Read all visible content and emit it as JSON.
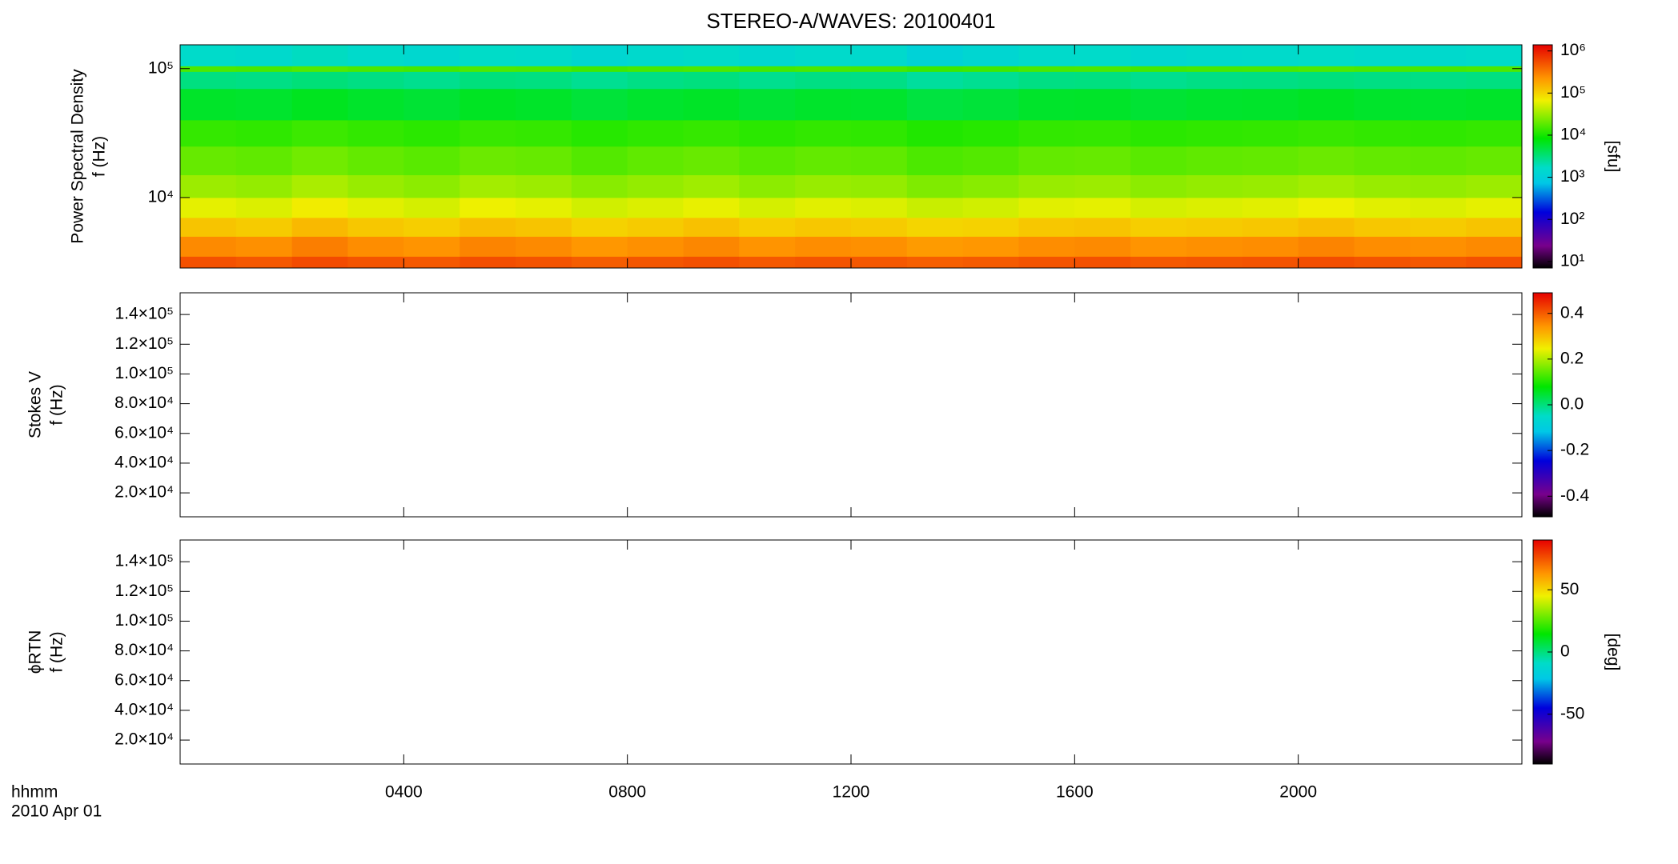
{
  "chart_data": [
    {
      "type": "heatmap",
      "title": "STEREO-A/WAVES: 20100401",
      "ylabel": [
        "Power Spectral Density",
        "f (Hz)"
      ],
      "ylog": true,
      "ylim": [
        2840,
        153000
      ],
      "yticks": [
        {
          "value": 10000,
          "label": "10⁴"
        },
        {
          "value": 100000,
          "label": "10⁵"
        }
      ],
      "xlim": [
        0,
        24
      ],
      "x_edges": [
        0,
        1,
        2,
        3,
        4,
        5,
        6,
        7,
        8,
        9,
        10,
        11,
        12,
        13,
        14,
        15,
        16,
        17,
        18,
        19,
        20,
        21,
        22,
        23,
        24
      ],
      "y_edges": [
        2840,
        3500,
        5000,
        7000,
        10000,
        15000,
        25000,
        40000,
        70000,
        95000,
        105000,
        153000
      ],
      "z": [
        [
          520000,
          480000,
          560000,
          500000,
          470000,
          540000,
          510000,
          450000,
          490000,
          530000,
          470000,
          500000,
          480000,
          440000,
          460000,
          500000,
          520000,
          470000,
          490000,
          510000,
          540000,
          500000,
          480000,
          520000
        ],
        [
          260000,
          240000,
          300000,
          250000,
          230000,
          280000,
          260000,
          220000,
          240000,
          270000,
          230000,
          250000,
          240000,
          210000,
          220000,
          250000,
          260000,
          230000,
          240000,
          250000,
          280000,
          250000,
          240000,
          260000
        ],
        [
          120000,
          110000,
          140000,
          115000,
          105000,
          130000,
          120000,
          100000,
          110000,
          125000,
          105000,
          115000,
          110000,
          95000,
          100000,
          115000,
          120000,
          105000,
          110000,
          115000,
          130000,
          115000,
          110000,
          120000
        ],
        [
          60000,
          55000,
          70000,
          58000,
          52000,
          65000,
          60000,
          50000,
          55000,
          62000,
          52000,
          58000,
          55000,
          47000,
          50000,
          58000,
          60000,
          52000,
          55000,
          58000,
          65000,
          58000,
          55000,
          60000
        ],
        [
          32000,
          30000,
          36000,
          31000,
          28000,
          34000,
          32000,
          27000,
          30000,
          33000,
          28000,
          31000,
          30000,
          25000,
          27000,
          31000,
          32000,
          28000,
          30000,
          31000,
          34000,
          31000,
          30000,
          32000
        ],
        [
          20000,
          19000,
          22000,
          19500,
          18000,
          21000,
          20000,
          17000,
          19000,
          20500,
          18000,
          19500,
          19000,
          16000,
          17000,
          19500,
          20000,
          18000,
          19000,
          19500,
          21000,
          19500,
          19000,
          20000
        ],
        [
          13000,
          12500,
          14000,
          12800,
          12000,
          13500,
          13000,
          11500,
          12500,
          13200,
          12000,
          12800,
          12500,
          11000,
          11500,
          12800,
          13000,
          12000,
          12500,
          12800,
          13500,
          12800,
          12500,
          13000
        ],
        [
          6000,
          5800,
          6500,
          5900,
          5500,
          6300,
          6000,
          5300,
          5800,
          6100,
          5500,
          5900,
          5800,
          5000,
          5300,
          5900,
          6000,
          5500,
          5800,
          5900,
          6300,
          5900,
          5800,
          6000
        ],
        [
          3000,
          2900,
          3200,
          2950,
          2700,
          3100,
          3000,
          2600,
          2900,
          3050,
          2700,
          2950,
          2900,
          2400,
          2600,
          2950,
          3000,
          2700,
          2900,
          2950,
          3100,
          2950,
          2900,
          3000
        ],
        [
          16000,
          15500,
          17000,
          15800,
          15000,
          16500,
          16000,
          14500,
          15500,
          16200,
          15000,
          15800,
          15500,
          14000,
          14500,
          15800,
          16000,
          15000,
          15500,
          15800,
          16500,
          15800,
          15500,
          16000
        ],
        [
          1600,
          1500,
          1800,
          1550,
          1400,
          1700,
          1600,
          1300,
          1500,
          1650,
          1400,
          1550,
          1500,
          1100,
          1300,
          1550,
          1600,
          1400,
          1500,
          1550,
          1700,
          1550,
          1500,
          1600
        ]
      ],
      "colormap": "rainbow",
      "clog": true,
      "clim": [
        7,
        1400000
      ],
      "cticks": [
        {
          "value": 10,
          "label": "10¹"
        },
        {
          "value": 100,
          "label": "10²"
        },
        {
          "value": 1000,
          "label": "10³"
        },
        {
          "value": 10000,
          "label": "10⁴"
        },
        {
          "value": 100000,
          "label": "10⁵"
        },
        {
          "value": 1000000,
          "label": "10⁶"
        }
      ],
      "clabel": "[sfu]"
    },
    {
      "type": "heatmap",
      "ylabel": [
        "Stokes V",
        "f (Hz)"
      ],
      "ylog": false,
      "ylim": [
        3900,
        154600
      ],
      "yticks": [
        {
          "value": 20000,
          "label": "2.0×10⁴"
        },
        {
          "value": 40000,
          "label": "4.0×10⁴"
        },
        {
          "value": 60000,
          "label": "6.0×10⁴"
        },
        {
          "value": 80000,
          "label": "8.0×10⁴"
        },
        {
          "value": 100000,
          "label": "1.0×10⁵"
        },
        {
          "value": 120000,
          "label": "1.2×10⁵"
        },
        {
          "value": 140000,
          "label": "1.4×10⁵"
        }
      ],
      "colormap": "rainbow",
      "clog": false,
      "clim": [
        -0.49,
        0.49
      ],
      "cticks": [
        -0.4,
        -0.2,
        {
          "value": 0,
          "label": "0.0"
        },
        0.2,
        0.4
      ]
    },
    {
      "type": "heatmap",
      "ylabel": [
        "ϕRTN",
        "f (Hz)"
      ],
      "ylog": false,
      "ylim": [
        3900,
        154600
      ],
      "yticks": [
        {
          "value": 20000,
          "label": "2.0×10⁴"
        },
        {
          "value": 40000,
          "label": "4.0×10⁴"
        },
        {
          "value": 60000,
          "label": "6.0×10⁴"
        },
        {
          "value": 80000,
          "label": "8.0×10⁴"
        },
        {
          "value": 100000,
          "label": "1.0×10⁵"
        },
        {
          "value": 120000,
          "label": "1.2×10⁵"
        },
        {
          "value": 140000,
          "label": "1.4×10⁵"
        }
      ],
      "colormap": "rainbow",
      "clog": false,
      "clim": [
        -90,
        90
      ],
      "cticks": [
        -50,
        0,
        50
      ],
      "clabel": "[deg]",
      "xlim": [
        0,
        24
      ],
      "xticks": [
        {
          "value": 4,
          "label": "0400"
        },
        {
          "value": 8,
          "label": "0800"
        },
        {
          "value": 12,
          "label": "1200"
        },
        {
          "value": 16,
          "label": "1600"
        },
        {
          "value": 20,
          "label": "2000"
        }
      ],
      "xlabel": [
        "hhmm",
        "2010 Apr 01"
      ]
    }
  ]
}
